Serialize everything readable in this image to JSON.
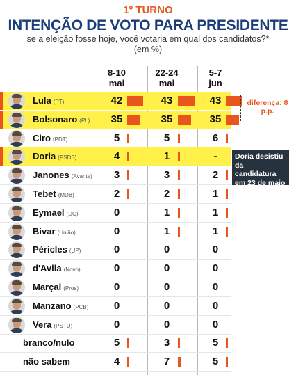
{
  "header": {
    "turno": "1º TURNO",
    "title": "INTENÇÃO DE VOTO PARA PRESIDENTE",
    "subtitle": "se a eleição fosse hoje, você votaria em qual dos candidatos?*",
    "unit": "(em %)"
  },
  "colors": {
    "accent": "#e8561e",
    "highlight": "#fff04a",
    "title": "#1b3d7a",
    "note_bg": "#26333f"
  },
  "annotations": {
    "difference": "diferença: 8 p.p.",
    "doria_note": "Doria desistiu da candidatura em 23 de maio"
  },
  "chart_data": {
    "type": "bar",
    "periods": [
      "8-10 mai",
      "22-24 mai",
      "5-7 jun"
    ],
    "period_lines": [
      [
        "8-10",
        "mai"
      ],
      [
        "22-24",
        "mai"
      ],
      [
        "5-7",
        "jun"
      ]
    ],
    "rows": [
      {
        "name": "Lula",
        "party": "(PT)",
        "values": [
          42,
          43,
          43
        ],
        "labels": [
          "42",
          "43",
          "43"
        ],
        "highlight": true,
        "marker": true,
        "avatar": true
      },
      {
        "name": "Bolsonaro",
        "party": "(PL)",
        "values": [
          35,
          35,
          35
        ],
        "labels": [
          "35",
          "35",
          "35"
        ],
        "highlight": true,
        "marker": true,
        "avatar": true
      },
      {
        "name": "Ciro",
        "party": "(PDT)",
        "values": [
          5,
          5,
          6
        ],
        "labels": [
          "5",
          "5",
          "6"
        ],
        "highlight": false,
        "marker": false,
        "avatar": true
      },
      {
        "name": "Doria",
        "party": "(PSDB)",
        "values": [
          4,
          1,
          null
        ],
        "labels": [
          "4",
          "1",
          "-"
        ],
        "highlight": true,
        "marker": true,
        "avatar": true
      },
      {
        "name": "Janones",
        "party": "(Avante)",
        "values": [
          3,
          3,
          2
        ],
        "labels": [
          "3",
          "3",
          "2"
        ],
        "highlight": false,
        "marker": false,
        "avatar": true
      },
      {
        "name": "Tebet",
        "party": "(MDB)",
        "values": [
          2,
          2,
          1
        ],
        "labels": [
          "2",
          "2",
          "1"
        ],
        "highlight": false,
        "marker": false,
        "avatar": true
      },
      {
        "name": "Eymael",
        "party": "(DC)",
        "values": [
          0,
          1,
          1
        ],
        "labels": [
          "0",
          "1",
          "1"
        ],
        "highlight": false,
        "marker": false,
        "avatar": true
      },
      {
        "name": "Bivar",
        "party": "(União)",
        "values": [
          0,
          1,
          1
        ],
        "labels": [
          "0",
          "1",
          "1"
        ],
        "highlight": false,
        "marker": false,
        "avatar": true
      },
      {
        "name": "Péricles",
        "party": "(UP)",
        "values": [
          0,
          0,
          0
        ],
        "labels": [
          "0",
          "0",
          "0"
        ],
        "highlight": false,
        "marker": false,
        "avatar": true
      },
      {
        "name": "d'Avila",
        "party": "(Novo)",
        "values": [
          0,
          0,
          0
        ],
        "labels": [
          "0",
          "0",
          "0"
        ],
        "highlight": false,
        "marker": false,
        "avatar": true
      },
      {
        "name": "Marçal",
        "party": "(Pros)",
        "values": [
          0,
          0,
          0
        ],
        "labels": [
          "0",
          "0",
          "0"
        ],
        "highlight": false,
        "marker": false,
        "avatar": true
      },
      {
        "name": "Manzano",
        "party": "(PCB)",
        "values": [
          0,
          0,
          0
        ],
        "labels": [
          "0",
          "0",
          "0"
        ],
        "highlight": false,
        "marker": false,
        "avatar": true
      },
      {
        "name": "Vera",
        "party": "(PSTU)",
        "values": [
          0,
          0,
          0
        ],
        "labels": [
          "0",
          "0",
          "0"
        ],
        "highlight": false,
        "marker": false,
        "avatar": true
      },
      {
        "name": "branco/nulo",
        "party": "",
        "values": [
          5,
          3,
          5
        ],
        "labels": [
          "5",
          "3",
          "5"
        ],
        "highlight": false,
        "marker": false,
        "avatar": false
      },
      {
        "name": "não sabem",
        "party": "",
        "values": [
          4,
          7,
          5
        ],
        "labels": [
          "4",
          "7",
          "5"
        ],
        "highlight": false,
        "marker": false,
        "avatar": false
      }
    ]
  }
}
